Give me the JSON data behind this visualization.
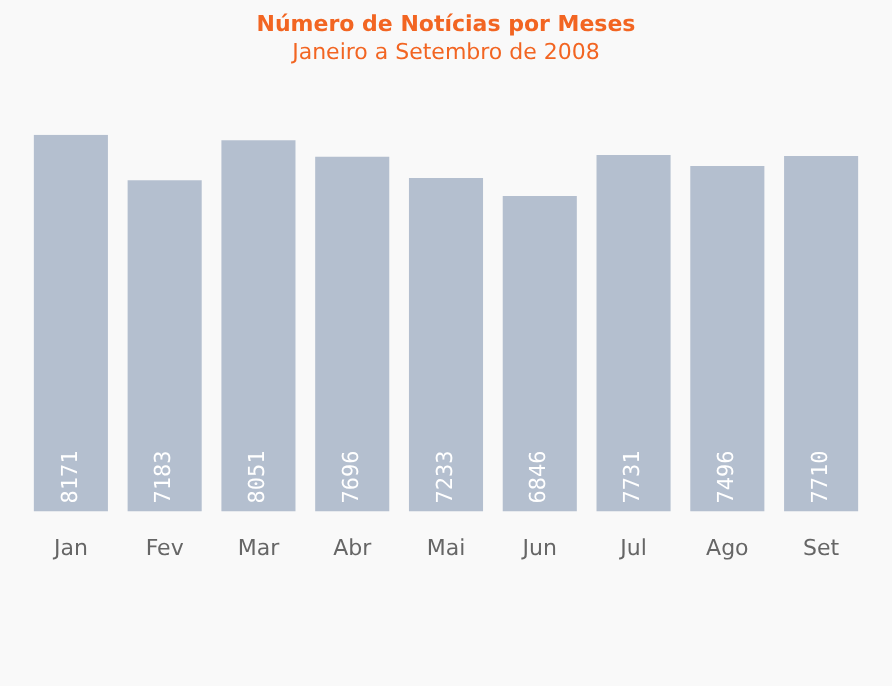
{
  "chart_data": {
    "type": "bar",
    "title": "Número de Notícias por Meses",
    "subtitle": "Janeiro a Setembro de 2008",
    "categories": [
      "Jan",
      "Fev",
      "Mar",
      "Abr",
      "Mai",
      "Jun",
      "Jul",
      "Ago",
      "Set"
    ],
    "values": [
      8171,
      7183,
      8051,
      7696,
      7233,
      6846,
      7731,
      7496,
      7710
    ],
    "color": "#b4bfcf",
    "data_labels": true,
    "grid": false,
    "legend": false
  }
}
